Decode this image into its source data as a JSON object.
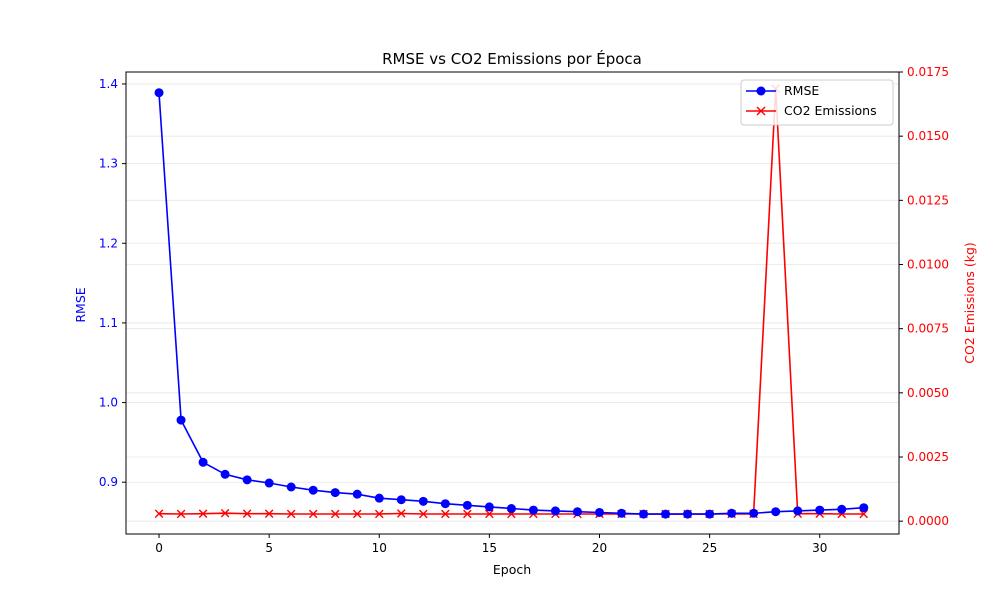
{
  "chart_data": {
    "type": "line",
    "title": "RMSE vs CO2 Emissions por Época",
    "xlabel": "Epoch",
    "ylabel_left": "RMSE",
    "ylabel_right": "CO2 Emissions (kg)",
    "xlim": [
      -1.5,
      33.6
    ],
    "ylim_left": [
      0.835,
      1.415
    ],
    "ylim_right": [
      -0.0005,
      0.0175
    ],
    "x_ticks": [
      "0",
      "5",
      "10",
      "15",
      "20",
      "25",
      "30"
    ],
    "y_left_ticks": [
      "0.9",
      "1.0",
      "1.1",
      "1.2",
      "1.3",
      "1.4"
    ],
    "y_right_ticks": [
      "0.0000",
      "0.0025",
      "0.0050",
      "0.0075",
      "0.0100",
      "0.0125",
      "0.0150",
      "0.0175"
    ],
    "grid": "horizontal",
    "legend_position": "top-right",
    "x": [
      0,
      1,
      2,
      3,
      4,
      5,
      6,
      7,
      8,
      9,
      10,
      11,
      12,
      13,
      14,
      15,
      16,
      17,
      18,
      19,
      20,
      21,
      22,
      23,
      24,
      25,
      26,
      27,
      28,
      29,
      30,
      31,
      32
    ],
    "series": [
      {
        "name": "RMSE",
        "axis": "left",
        "color": "#0000ff",
        "marker": "circle",
        "values": [
          1.389,
          0.978,
          0.925,
          0.91,
          0.903,
          0.899,
          0.894,
          0.89,
          0.887,
          0.885,
          0.88,
          0.878,
          0.876,
          0.873,
          0.871,
          0.869,
          0.867,
          0.865,
          0.864,
          0.863,
          0.862,
          0.861,
          0.86,
          0.86,
          0.86,
          0.86,
          0.861,
          0.861,
          0.863,
          0.864,
          0.865,
          0.866,
          0.868
        ]
      },
      {
        "name": "CO2 Emissions",
        "axis": "right",
        "color": "#ff0000",
        "marker": "x",
        "values": [
          0.00029,
          0.00028,
          0.00029,
          0.00031,
          0.00029,
          0.00029,
          0.00028,
          0.00028,
          0.00028,
          0.00028,
          0.00028,
          0.0003,
          0.00028,
          0.00028,
          0.00028,
          0.00028,
          0.00028,
          0.00028,
          0.00028,
          0.00028,
          0.00028,
          0.00028,
          0.00028,
          0.00028,
          0.00028,
          0.00028,
          0.00028,
          0.00028,
          0.01685,
          0.00029,
          0.00029,
          0.00028,
          0.00028
        ]
      }
    ]
  }
}
